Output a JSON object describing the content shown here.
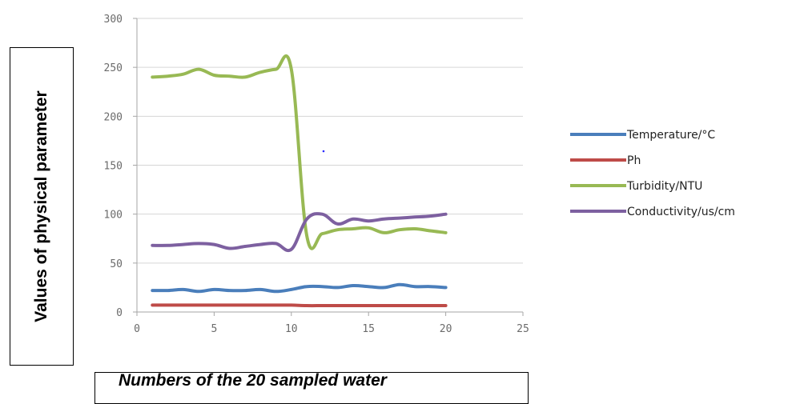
{
  "chart_data": {
    "type": "line",
    "title": "",
    "xlabel": "Numbers of the 20 sampled water",
    "ylabel": "Values of physical parameter",
    "xlim": [
      0,
      25
    ],
    "ylim": [
      0,
      300
    ],
    "xticks": [
      0,
      5,
      10,
      15,
      20,
      25
    ],
    "yticks": [
      0,
      50,
      100,
      150,
      200,
      250,
      300
    ],
    "grid": "horizontal",
    "legend_position": "right",
    "x": [
      1,
      2,
      3,
      4,
      5,
      6,
      7,
      8,
      9,
      10,
      11,
      12,
      13,
      14,
      15,
      16,
      17,
      18,
      19,
      20
    ],
    "series": [
      {
        "name": "Temperature/°C",
        "color": "#4a7ebb",
        "values": [
          22,
          22,
          23,
          21,
          23,
          22,
          22,
          23,
          21,
          23,
          26,
          26,
          25,
          27,
          26,
          25,
          28,
          26,
          26,
          25
        ]
      },
      {
        "name": "Ph",
        "color": "#be4b48",
        "values": [
          7,
          7,
          7,
          7,
          7,
          7,
          7,
          7,
          7,
          7,
          6.5,
          6.5,
          6.5,
          6.5,
          6.5,
          6.5,
          6.5,
          6.5,
          6.5,
          6.5
        ]
      },
      {
        "name": "Turbidity/NTU",
        "color": "#98b954",
        "values": [
          240,
          241,
          243,
          248,
          242,
          241,
          240,
          245,
          248,
          248,
          78,
          80,
          84,
          85,
          86,
          81,
          84,
          85,
          83,
          81
        ]
      },
      {
        "name": "Conductivity/us/cm",
        "color": "#7d60a0",
        "values": [
          68,
          68,
          69,
          70,
          69,
          65,
          67,
          69,
          70,
          64,
          95,
          100,
          90,
          95,
          93,
          95,
          96,
          97,
          98,
          100
        ]
      }
    ]
  }
}
